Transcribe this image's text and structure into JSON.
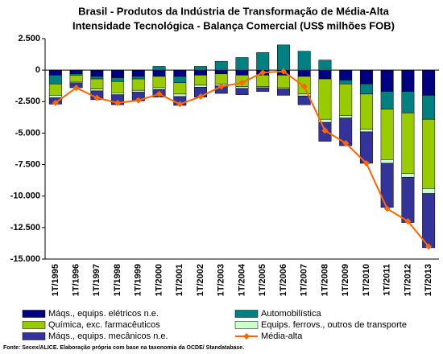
{
  "chart_data": {
    "type": "bar",
    "title": "Brasil - Produtos da Indústria de Transformação de Média-Alta",
    "subtitle": "Intensidade Tecnológica - Balança Comercial (US$ milhões FOB)",
    "source": "Fonte: Secex/ALICE. Elaboração própria com base na taxonomia da OCDE/ Standatabase.",
    "stacked": true,
    "categories": [
      "1T/1995",
      "1T/1996",
      "1T/1997",
      "1T/1998",
      "1T/1999",
      "1T/2000",
      "1T/2001",
      "1T/2002",
      "1T/2003",
      "1T/2004",
      "1T/2005",
      "1T/2006",
      "1T/2007",
      "1T/2008",
      "1T/2009",
      "1T/2010",
      "1T/2011",
      "1T/2012",
      "1T/2013"
    ],
    "series": [
      {
        "name": "Máqs., equips. elétricos n.e.",
        "color": "#000080",
        "values": [
          -400,
          -300,
          -500,
          -600,
          -500,
          -500,
          -500,
          -400,
          -300,
          -400,
          -400,
          -400,
          -500,
          -700,
          -800,
          -1100,
          -1700,
          -1700,
          -2000
        ]
      },
      {
        "name": "Automobilística",
        "color": "#008080",
        "values": [
          -700,
          -100,
          -200,
          -300,
          -200,
          300,
          -500,
          300,
          700,
          1000,
          1400,
          2000,
          1500,
          800,
          -300,
          -800,
          -1400,
          -1700,
          -1900
        ]
      },
      {
        "name": "Química, exc. farmacêuticos",
        "color": "#99cc00",
        "values": [
          -900,
          -500,
          -800,
          -900,
          -900,
          -900,
          -900,
          -800,
          -800,
          -900,
          -900,
          -1000,
          -1400,
          -3200,
          -2500,
          -2800,
          -4000,
          -4800,
          -5500
        ]
      },
      {
        "name": "Equips. ferrovs., outros de transporte",
        "color": "#ccffcc",
        "values": [
          -200,
          -100,
          -150,
          -150,
          -150,
          -150,
          -200,
          -150,
          -150,
          -150,
          -100,
          -100,
          -150,
          -250,
          -200,
          -200,
          -300,
          -300,
          -400
        ]
      },
      {
        "name": "Máqs., equips. mecânicos n.e.",
        "color": "#333399",
        "values": [
          -500,
          -400,
          -700,
          -800,
          -700,
          -600,
          -700,
          -800,
          -600,
          -500,
          -300,
          -500,
          -700,
          -1500,
          -2200,
          -2500,
          -3500,
          -3600,
          -4300
        ]
      }
    ],
    "line": {
      "name": "Média-alta",
      "color": "#ff6600",
      "values": [
        -2600,
        -1400,
        -2200,
        -2600,
        -2400,
        -1900,
        -2700,
        -2100,
        -1300,
        -1000,
        -200,
        -100,
        -1300,
        -4800,
        -5800,
        -7400,
        -11000,
        -12000,
        -14000
      ]
    },
    "ylim": [
      -15000,
      2500
    ],
    "yticks": [
      {
        "value": 2500,
        "label": "2.500"
      },
      0,
      {
        "value": -2500,
        "label": "-2.500"
      },
      {
        "value": -5000,
        "label": "-5.000"
      },
      {
        "value": -7500,
        "label": "-7.500"
      },
      {
        "value": -10000,
        "label": "-10.000"
      },
      {
        "value": -12500,
        "label": "-12.500"
      },
      {
        "value": -15000,
        "label": "-15.000"
      }
    ],
    "grid": false
  }
}
